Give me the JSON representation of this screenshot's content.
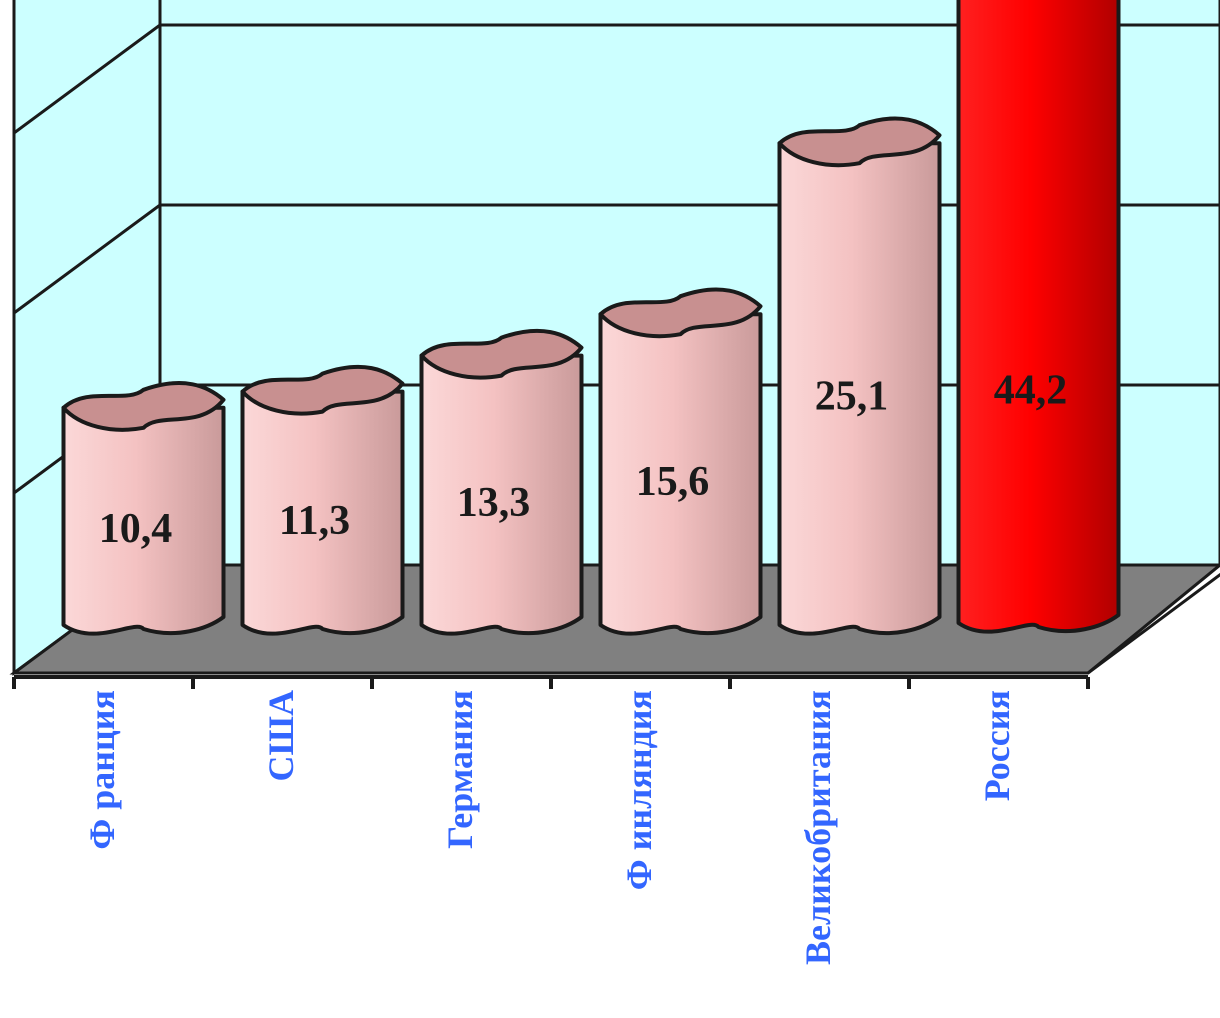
{
  "chart_data": {
    "type": "bar",
    "categories": [
      "Ф ранция",
      "США",
      "Германия",
      "Ф инляндия",
      "Великобритания",
      "Россия"
    ],
    "values": [
      10.4,
      11.3,
      13.3,
      15.6,
      25.1,
      44.2
    ],
    "data_labels": [
      "10,4",
      "11,3",
      "13,3",
      "15,6",
      "25,1",
      "44,2"
    ],
    "title": "",
    "xlabel": "",
    "ylabel": "",
    "ylim": [
      0,
      50
    ],
    "grid": true,
    "style": "3d-cylinder",
    "colors": {
      "bar": "#f4c2c2",
      "bar_top": "#c89090",
      "highlight_bar": "#ff0000",
      "highlight_top": "#cc0000",
      "back_wall": "#ccffff",
      "floor": "#808080",
      "category_label": "#3366ff"
    },
    "highlight_index": 5
  }
}
